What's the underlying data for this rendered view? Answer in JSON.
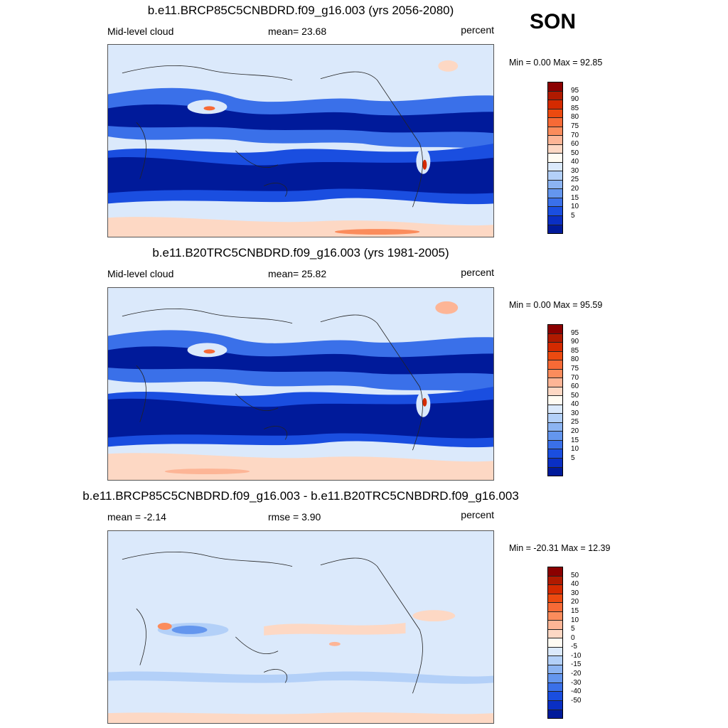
{
  "season": "SON",
  "panels": [
    {
      "title": "b.e11.BRCP85C5CNBDRD.f09_g16.003 (yrs 2056-2080)",
      "left_label": "Mid-level cloud",
      "center_label": "mean=  23.68",
      "right_label": "percent",
      "minmax": "Min =   0.00 Max =  92.85"
    },
    {
      "title": "b.e11.B20TRC5CNBDRD.f09_g16.003 (yrs 1981-2005)",
      "left_label": "Mid-level cloud",
      "center_label": "mean=  25.82",
      "right_label": "percent",
      "minmax": "Min =   0.00 Max =  95.59"
    },
    {
      "title": "b.e11.BRCP85C5CNBDRD.f09_g16.003 - b.e11.B20TRC5CNBDRD.f09_g16.003",
      "left_label": "mean =  -2.14",
      "center_label": "rmse =   3.90",
      "right_label": "percent",
      "minmax": "Min = -20.31 Max =  12.39"
    }
  ],
  "colorbars": {
    "absolute": {
      "labels": [
        "95",
        "90",
        "85",
        "80",
        "75",
        "70",
        "60",
        "50",
        "40",
        "30",
        "25",
        "20",
        "15",
        "10",
        "5"
      ],
      "colors": [
        "#8b0000",
        "#b01a00",
        "#d42a00",
        "#ec4a10",
        "#f76a36",
        "#fb8c5c",
        "#fdb596",
        "#fdd8c4",
        "#fffbf2",
        "#dbe9fb",
        "#b3d0f8",
        "#8cb4f2",
        "#6496ee",
        "#3a70e9",
        "#1a4ee0",
        "#0a2fc4",
        "#001a9a"
      ]
    },
    "difference": {
      "labels": [
        "50",
        "40",
        "30",
        "20",
        "15",
        "10",
        "5",
        "0",
        "-5",
        "-10",
        "-15",
        "-20",
        "-30",
        "-40",
        "-50"
      ],
      "colors": [
        "#8b0000",
        "#b01a00",
        "#d42a00",
        "#ec4a10",
        "#f76a36",
        "#fb8c5c",
        "#fdb596",
        "#fdd8c4",
        "#fffbf2",
        "#dbe9fb",
        "#b3d0f8",
        "#8cb4f2",
        "#6496ee",
        "#3a70e9",
        "#1a4ee0",
        "#0a2fc4",
        "#001a9a"
      ]
    }
  }
}
